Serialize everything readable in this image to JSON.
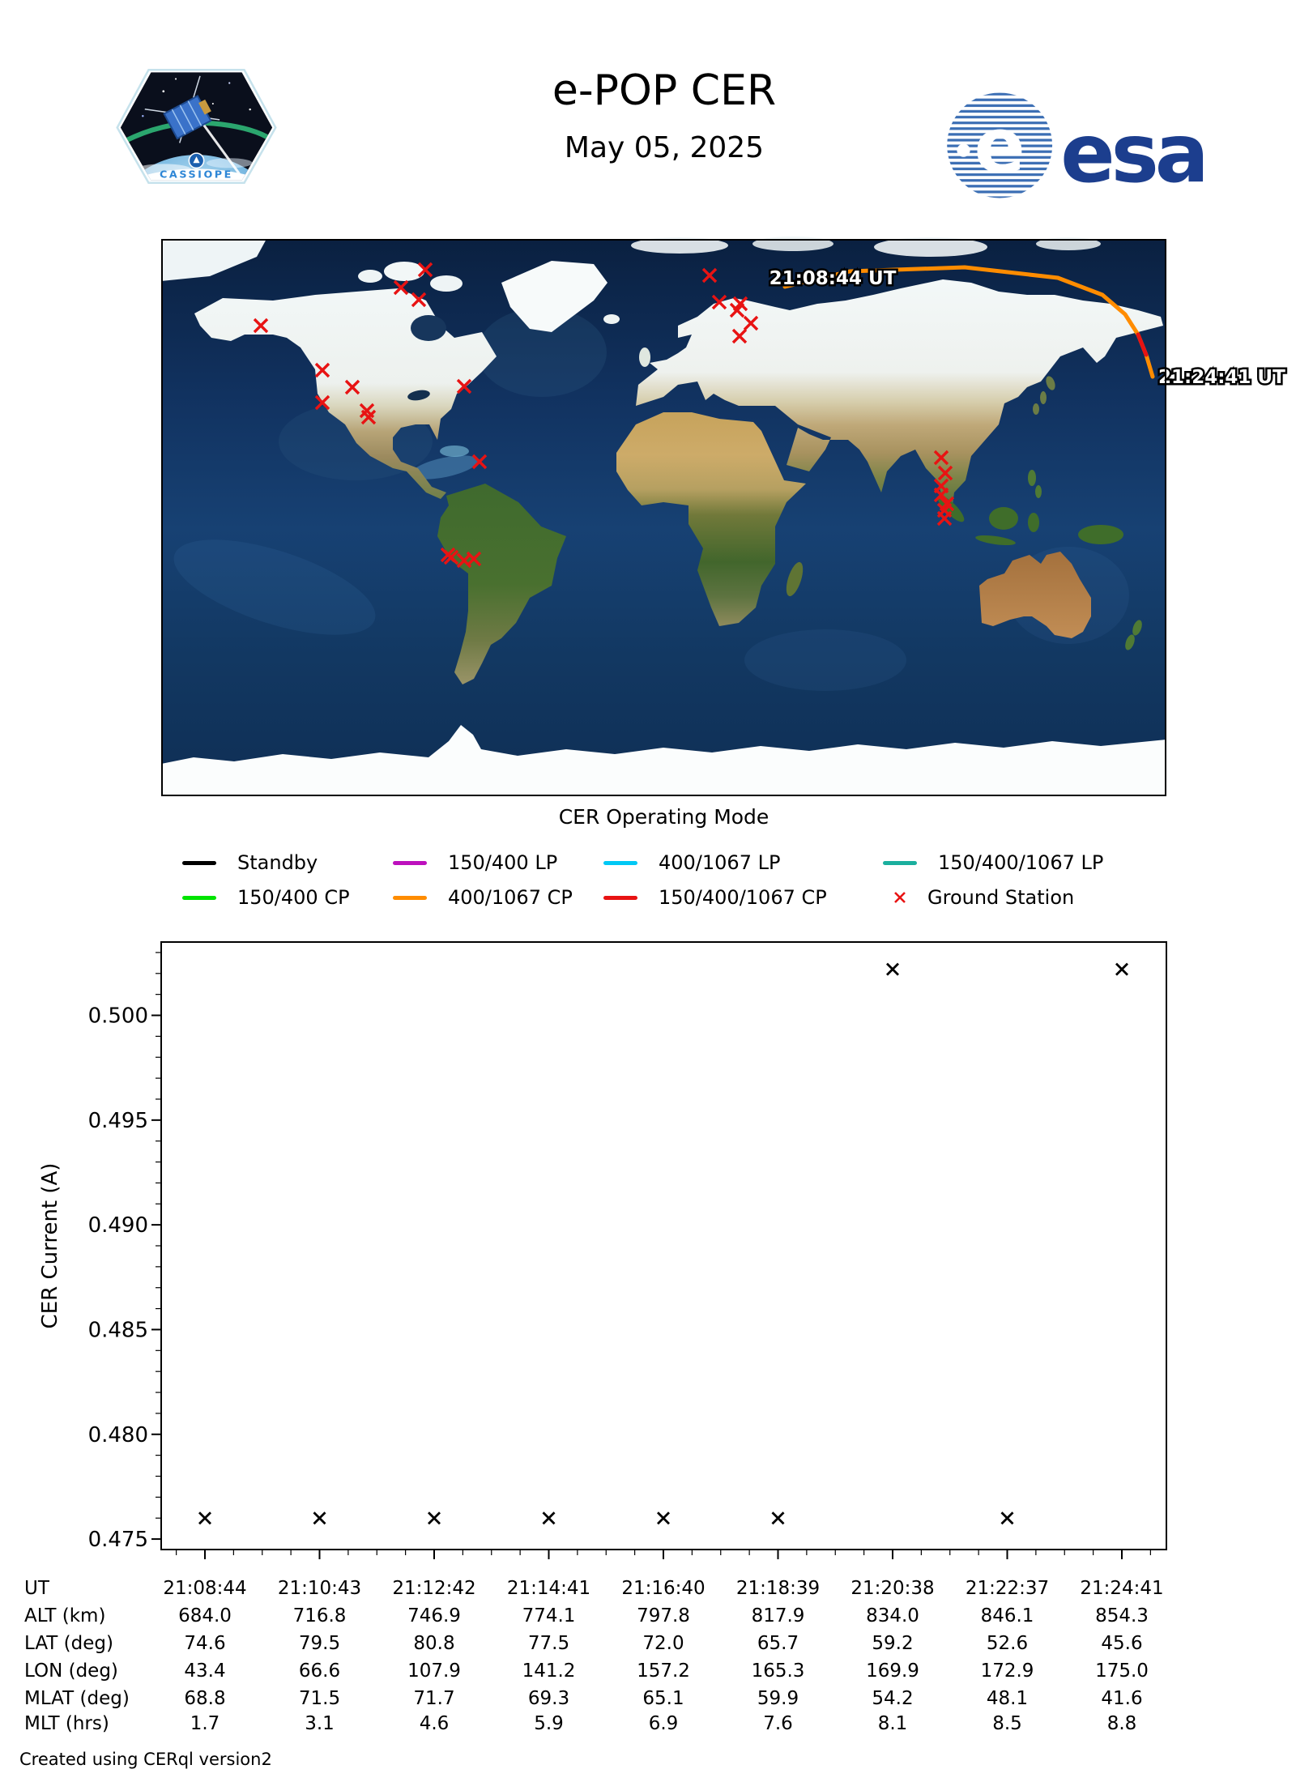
{
  "header": {
    "title": "e-POP CER",
    "date": "May 05, 2025",
    "patch_label": "CASSIOPE",
    "esa_wordmark": "esa"
  },
  "map": {
    "track_start_label": "21:08:44 UT",
    "track_end_label": "21:24:41 UT",
    "track_color": "#ff8c00",
    "track_red_color": "#e81313",
    "track_points": [
      [
        770,
        59
      ],
      [
        850,
        40
      ],
      [
        992,
        35
      ],
      [
        1107,
        48
      ],
      [
        1162,
        69
      ],
      [
        1190,
        93
      ],
      [
        1206,
        118
      ],
      [
        1216,
        143
      ],
      [
        1224,
        170
      ]
    ],
    "red_segment_indices": [
      6,
      7
    ],
    "ground_station_color": "#e81313",
    "ground_stations": [
      [
        123,
        107
      ],
      [
        296,
        60
      ],
      [
        318,
        75
      ],
      [
        326,
        38
      ],
      [
        199,
        162
      ],
      [
        236,
        183
      ],
      [
        199,
        202
      ],
      [
        254,
        212
      ],
      [
        256,
        220
      ],
      [
        374,
        182
      ],
      [
        393,
        275
      ],
      [
        354,
        390
      ],
      [
        358,
        393
      ],
      [
        374,
        397
      ],
      [
        386,
        395
      ],
      [
        677,
        45
      ],
      [
        689,
        78
      ],
      [
        715,
        80
      ],
      [
        711,
        88
      ],
      [
        728,
        104
      ],
      [
        714,
        120
      ],
      [
        963,
        270
      ],
      [
        968,
        289
      ],
      [
        963,
        305
      ],
      [
        963,
        316
      ],
      [
        970,
        327
      ],
      [
        967,
        335
      ],
      [
        967,
        345
      ]
    ]
  },
  "legend": {
    "title": "CER Operating Mode",
    "items": [
      {
        "label": "Standby",
        "color": "#000000",
        "type": "line"
      },
      {
        "label": "150/400 LP",
        "color": "#bd10bd",
        "type": "line"
      },
      {
        "label": "400/1067 LP",
        "color": "#00c8f5",
        "type": "line"
      },
      {
        "label": "150/400/1067 LP",
        "color": "#1aaf9e",
        "type": "line"
      },
      {
        "label": "150/400 CP",
        "color": "#00e400",
        "type": "line"
      },
      {
        "label": "400/1067 CP",
        "color": "#ff8c00",
        "type": "line"
      },
      {
        "label": "150/400/1067 CP",
        "color": "#e81313",
        "type": "line"
      },
      {
        "label": "Ground Station",
        "color": "#e81313",
        "type": "marker"
      }
    ]
  },
  "chart_data": {
    "type": "scatter",
    "title": "",
    "ylabel": "CER Current (A)",
    "marker": "x",
    "marker_color": "#000000",
    "x_labels": [
      "21:08:44",
      "21:10:43",
      "21:12:42",
      "21:14:41",
      "21:16:40",
      "21:18:39",
      "21:20:38",
      "21:22:37",
      "21:24:41"
    ],
    "values": [
      0.476,
      0.476,
      0.476,
      0.476,
      0.476,
      0.476,
      0.5022,
      0.476,
      0.5022
    ],
    "ylim": [
      0.4745,
      0.5035
    ],
    "yticks": [
      0.475,
      0.48,
      0.485,
      0.49,
      0.495,
      0.5
    ],
    "ytick_labels": [
      "0.475",
      "0.480",
      "0.485",
      "0.490",
      "0.495",
      "0.500"
    ],
    "grid": false,
    "legend_position": "none"
  },
  "table": {
    "rows": [
      {
        "label": "UT",
        "values": [
          "21:08:44",
          "21:10:43",
          "21:12:42",
          "21:14:41",
          "21:16:40",
          "21:18:39",
          "21:20:38",
          "21:22:37",
          "21:24:41"
        ]
      },
      {
        "label": "ALT (km)",
        "values": [
          "684.0",
          "716.8",
          "746.9",
          "774.1",
          "797.8",
          "817.9",
          "834.0",
          "846.1",
          "854.3"
        ]
      },
      {
        "label": "LAT (deg)",
        "values": [
          "74.6",
          "79.5",
          "80.8",
          "77.5",
          "72.0",
          "65.7",
          "59.2",
          "52.6",
          "45.6"
        ]
      },
      {
        "label": "LON (deg)",
        "values": [
          "43.4",
          "66.6",
          "107.9",
          "141.2",
          "157.2",
          "165.3",
          "169.9",
          "172.9",
          "175.0"
        ]
      },
      {
        "label": "MLAT (deg)",
        "values": [
          "68.8",
          "71.5",
          "71.7",
          "69.3",
          "65.1",
          "59.9",
          "54.2",
          "48.1",
          "41.6"
        ]
      },
      {
        "label": "MLT (hrs)",
        "values": [
          "1.7",
          "3.1",
          "4.6",
          "5.9",
          "6.9",
          "7.6",
          "8.1",
          "8.5",
          "8.8"
        ]
      }
    ]
  },
  "footer": "Created using CERql version2"
}
